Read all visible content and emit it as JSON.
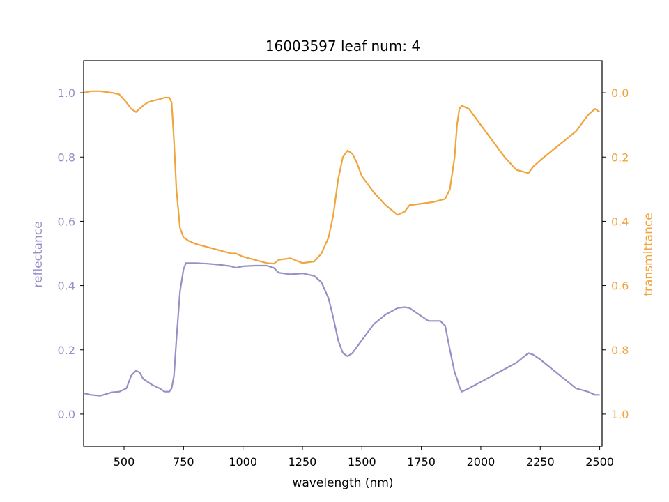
{
  "chart_data": {
    "type": "line",
    "title": "16003597 leaf num: 4",
    "xlabel": "wavelength (nm)",
    "ylabel_left": "reflectance",
    "ylabel_right": "transmittance",
    "xlim": [
      330,
      2510
    ],
    "ylim_left": [
      -0.1,
      1.1
    ],
    "ylim_right_inverted": [
      1.1,
      -0.1
    ],
    "x_ticks": [
      500,
      750,
      1000,
      1250,
      1500,
      1750,
      2000,
      2250,
      2500
    ],
    "y_ticks_left": [
      0.0,
      0.2,
      0.4,
      0.6,
      0.8,
      1.0
    ],
    "y_ticks_right": [
      0.0,
      0.2,
      0.4,
      0.6,
      0.8,
      1.0
    ],
    "grid": false,
    "colors": {
      "reflectance": "#9590c6",
      "transmittance": "#f0a43c"
    },
    "series": [
      {
        "name": "reflectance",
        "axis": "left",
        "x": [
          330,
          360,
          400,
          450,
          480,
          510,
          530,
          550,
          565,
          580,
          600,
          620,
          650,
          670,
          690,
          700,
          710,
          720,
          735,
          750,
          760,
          800,
          850,
          900,
          950,
          970,
          1000,
          1050,
          1100,
          1130,
          1150,
          1200,
          1250,
          1300,
          1330,
          1360,
          1380,
          1400,
          1420,
          1440,
          1460,
          1500,
          1550,
          1600,
          1650,
          1680,
          1700,
          1750,
          1780,
          1800,
          1830,
          1850,
          1870,
          1890,
          1900,
          1910,
          1920,
          1950,
          2000,
          2050,
          2100,
          2150,
          2200,
          2220,
          2250,
          2300,
          2350,
          2400,
          2450,
          2480,
          2500
        ],
        "values": [
          0.065,
          0.06,
          0.057,
          0.068,
          0.07,
          0.08,
          0.12,
          0.135,
          0.13,
          0.11,
          0.1,
          0.09,
          0.08,
          0.07,
          0.07,
          0.08,
          0.12,
          0.23,
          0.38,
          0.45,
          0.47,
          0.47,
          0.468,
          0.465,
          0.46,
          0.455,
          0.46,
          0.462,
          0.462,
          0.455,
          0.44,
          0.435,
          0.438,
          0.43,
          0.41,
          0.36,
          0.3,
          0.23,
          0.19,
          0.18,
          0.19,
          0.23,
          0.28,
          0.31,
          0.33,
          0.333,
          0.33,
          0.305,
          0.29,
          0.29,
          0.29,
          0.275,
          0.2,
          0.13,
          0.11,
          0.085,
          0.07,
          0.08,
          0.1,
          0.12,
          0.14,
          0.16,
          0.19,
          0.185,
          0.17,
          0.14,
          0.11,
          0.08,
          0.07,
          0.06,
          0.06
        ]
      },
      {
        "name": "transmittance",
        "axis": "right",
        "x": [
          330,
          360,
          400,
          450,
          480,
          510,
          530,
          550,
          565,
          580,
          600,
          620,
          650,
          670,
          690,
          700,
          710,
          720,
          735,
          750,
          770,
          800,
          850,
          900,
          950,
          970,
          1000,
          1050,
          1100,
          1130,
          1150,
          1200,
          1250,
          1300,
          1330,
          1360,
          1380,
          1400,
          1420,
          1440,
          1460,
          1480,
          1500,
          1550,
          1600,
          1650,
          1680,
          1700,
          1750,
          1800,
          1850,
          1870,
          1890,
          1900,
          1910,
          1920,
          1950,
          2000,
          2050,
          2100,
          2150,
          2200,
          2220,
          2250,
          2300,
          2350,
          2400,
          2450,
          2480,
          2500
        ],
        "values": [
          0.0,
          -0.005,
          -0.005,
          0.0,
          0.005,
          0.03,
          0.05,
          0.06,
          0.05,
          0.04,
          0.03,
          0.025,
          0.02,
          0.015,
          0.015,
          0.03,
          0.15,
          0.3,
          0.42,
          0.45,
          0.46,
          0.47,
          0.48,
          0.49,
          0.5,
          0.5,
          0.51,
          0.52,
          0.53,
          0.532,
          0.52,
          0.515,
          0.53,
          0.525,
          0.5,
          0.45,
          0.38,
          0.27,
          0.2,
          0.18,
          0.19,
          0.22,
          0.26,
          0.31,
          0.35,
          0.38,
          0.37,
          0.35,
          0.345,
          0.34,
          0.33,
          0.3,
          0.2,
          0.1,
          0.05,
          0.04,
          0.05,
          0.1,
          0.15,
          0.2,
          0.24,
          0.25,
          0.23,
          0.21,
          0.18,
          0.15,
          0.12,
          0.07,
          0.05,
          0.06
        ]
      }
    ]
  }
}
